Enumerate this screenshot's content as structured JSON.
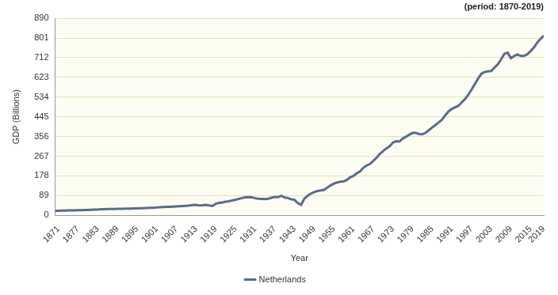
{
  "chart_data": {
    "type": "line",
    "subtitle": "(period: 1870-2019)",
    "x_label": "Year",
    "y_label": "GDP (Billions)",
    "x": [
      1870,
      1871,
      1872,
      1873,
      1874,
      1875,
      1876,
      1877,
      1878,
      1879,
      1880,
      1881,
      1882,
      1883,
      1884,
      1885,
      1886,
      1887,
      1888,
      1889,
      1890,
      1891,
      1892,
      1893,
      1894,
      1895,
      1896,
      1897,
      1898,
      1899,
      1900,
      1901,
      1902,
      1903,
      1904,
      1905,
      1906,
      1907,
      1908,
      1909,
      1910,
      1911,
      1912,
      1913,
      1914,
      1915,
      1916,
      1917,
      1918,
      1919,
      1920,
      1921,
      1922,
      1923,
      1924,
      1925,
      1926,
      1927,
      1928,
      1929,
      1930,
      1931,
      1932,
      1933,
      1934,
      1935,
      1936,
      1937,
      1938,
      1939,
      1940,
      1941,
      1942,
      1943,
      1944,
      1945,
      1946,
      1947,
      1948,
      1949,
      1950,
      1951,
      1952,
      1953,
      1954,
      1955,
      1956,
      1957,
      1958,
      1959,
      1960,
      1961,
      1962,
      1963,
      1964,
      1965,
      1966,
      1967,
      1968,
      1969,
      1970,
      1971,
      1972,
      1973,
      1974,
      1975,
      1976,
      1977,
      1978,
      1979,
      1980,
      1981,
      1982,
      1983,
      1984,
      1985,
      1986,
      1987,
      1988,
      1989,
      1990,
      1991,
      1992,
      1993,
      1994,
      1995,
      1996,
      1997,
      1998,
      1999,
      2000,
      2001,
      2002,
      2003,
      2004,
      2005,
      2006,
      2007,
      2008,
      2009,
      2010,
      2011,
      2012,
      2013,
      2014,
      2015,
      2016,
      2017,
      2018,
      2019
    ],
    "series": [
      {
        "name": "Netherlands",
        "color": "#5b6b8c",
        "values": [
          20,
          20,
          21,
          21,
          22,
          22,
          22,
          23,
          23,
          24,
          24,
          25,
          26,
          26,
          27,
          27,
          28,
          28,
          28,
          29,
          29,
          29,
          30,
          30,
          31,
          31,
          32,
          32,
          33,
          34,
          34,
          35,
          36,
          37,
          38,
          38,
          39,
          40,
          41,
          42,
          43,
          44,
          46,
          47,
          44,
          45,
          47,
          44,
          42,
          52,
          56,
          58,
          61,
          63,
          67,
          70,
          74,
          78,
          81,
          82,
          81,
          77,
          75,
          74,
          73,
          75,
          79,
          83,
          82,
          88,
          80,
          78,
          72,
          70,
          55,
          47,
          75,
          88,
          98,
          105,
          110,
          112,
          115,
          125,
          135,
          143,
          148,
          152,
          153,
          160,
          172,
          178,
          190,
          198,
          215,
          225,
          232,
          245,
          260,
          277,
          290,
          302,
          312,
          328,
          335,
          333,
          347,
          355,
          364,
          372,
          372,
          367,
          366,
          373,
          385,
          397,
          408,
          420,
          432,
          452,
          470,
          481,
          488,
          495,
          510,
          525,
          545,
          568,
          593,
          618,
          640,
          648,
          650,
          652,
          668,
          682,
          705,
          730,
          735,
          710,
          720,
          727,
          720,
          720,
          728,
          742,
          758,
          780,
          797,
          812
        ]
      }
    ],
    "xlim": [
      1870,
      2019
    ],
    "xticks": [
      1871,
      1877,
      1883,
      1889,
      1895,
      1901,
      1907,
      1913,
      1919,
      1925,
      1931,
      1937,
      1943,
      1949,
      1955,
      1961,
      1967,
      1973,
      1979,
      1985,
      1991,
      1997,
      2003,
      2009,
      2015,
      2019
    ],
    "ylim": [
      0,
      890
    ],
    "yticks": [
      0,
      89,
      178,
      267,
      356,
      445,
      534,
      623,
      712,
      801,
      890
    ],
    "grid": true,
    "legend": "bottom"
  }
}
